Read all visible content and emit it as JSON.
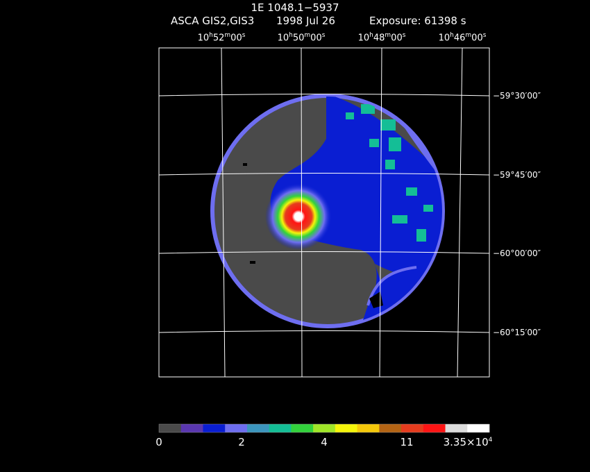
{
  "header": {
    "title": "1E 1048.1−5937",
    "instrument": "ASCA GIS2,GIS3",
    "date": "1998 Jul 26",
    "exposure": "Exposure: 61398 s"
  },
  "ra_labels": [
    {
      "h": "10",
      "m": "52",
      "s": "00"
    },
    {
      "h": "10",
      "m": "50",
      "s": "00"
    },
    {
      "h": "10",
      "m": "48",
      "s": "00"
    },
    {
      "h": "10",
      "m": "46",
      "s": "00"
    }
  ],
  "dec_labels": [
    "−59°30′00″",
    "−59°45′00″",
    "−60°00′00″",
    "−60°15′00″"
  ],
  "colorbar": {
    "labels": [
      "0",
      "2",
      "4",
      "11"
    ],
    "max_label": "3.35×10",
    "max_exp": "4",
    "colors": [
      "#4a4a4a",
      "#5a37b0",
      "#0a1ed2",
      "#6e6ef0",
      "#3c96be",
      "#14be96",
      "#32d23c",
      "#a0e628",
      "#f5f50a",
      "#f5c80a",
      "#b46414",
      "#e63c1e",
      "#ff1414",
      "#dcdcdc",
      "#ffffff"
    ]
  },
  "image": {
    "bg_color": "#4a4a4a",
    "source": "1E 1048.1-5937"
  }
}
